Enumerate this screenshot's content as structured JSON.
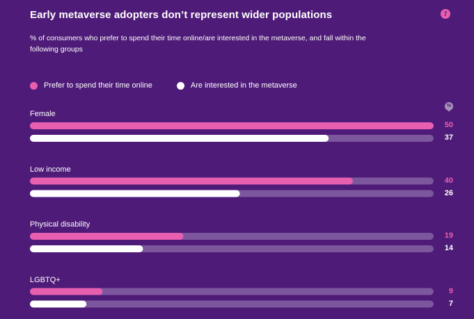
{
  "page_badge": "7",
  "percent_icon": "%",
  "chart_data": {
    "type": "bar",
    "orientation": "horizontal",
    "title": "Early metaverse adopters don’t represent wider populations",
    "subtitle": "% of consumers who prefer to spend their time online/are interested in the metaverse, and fall within the following groups",
    "xlim": [
      0,
      50
    ],
    "categories": [
      "Female",
      "Low income",
      "Physical disability",
      "LGBTQ+"
    ],
    "series": [
      {
        "name": "Prefer to spend their time online",
        "color": "#e85fb0",
        "values": [
          50,
          40,
          19,
          9
        ]
      },
      {
        "name": "Are interested in the metaverse",
        "color": "#ffffff",
        "values": [
          37,
          26,
          14,
          7
        ]
      }
    ],
    "track_color": "#7d579e",
    "legend_position": "top-left"
  }
}
